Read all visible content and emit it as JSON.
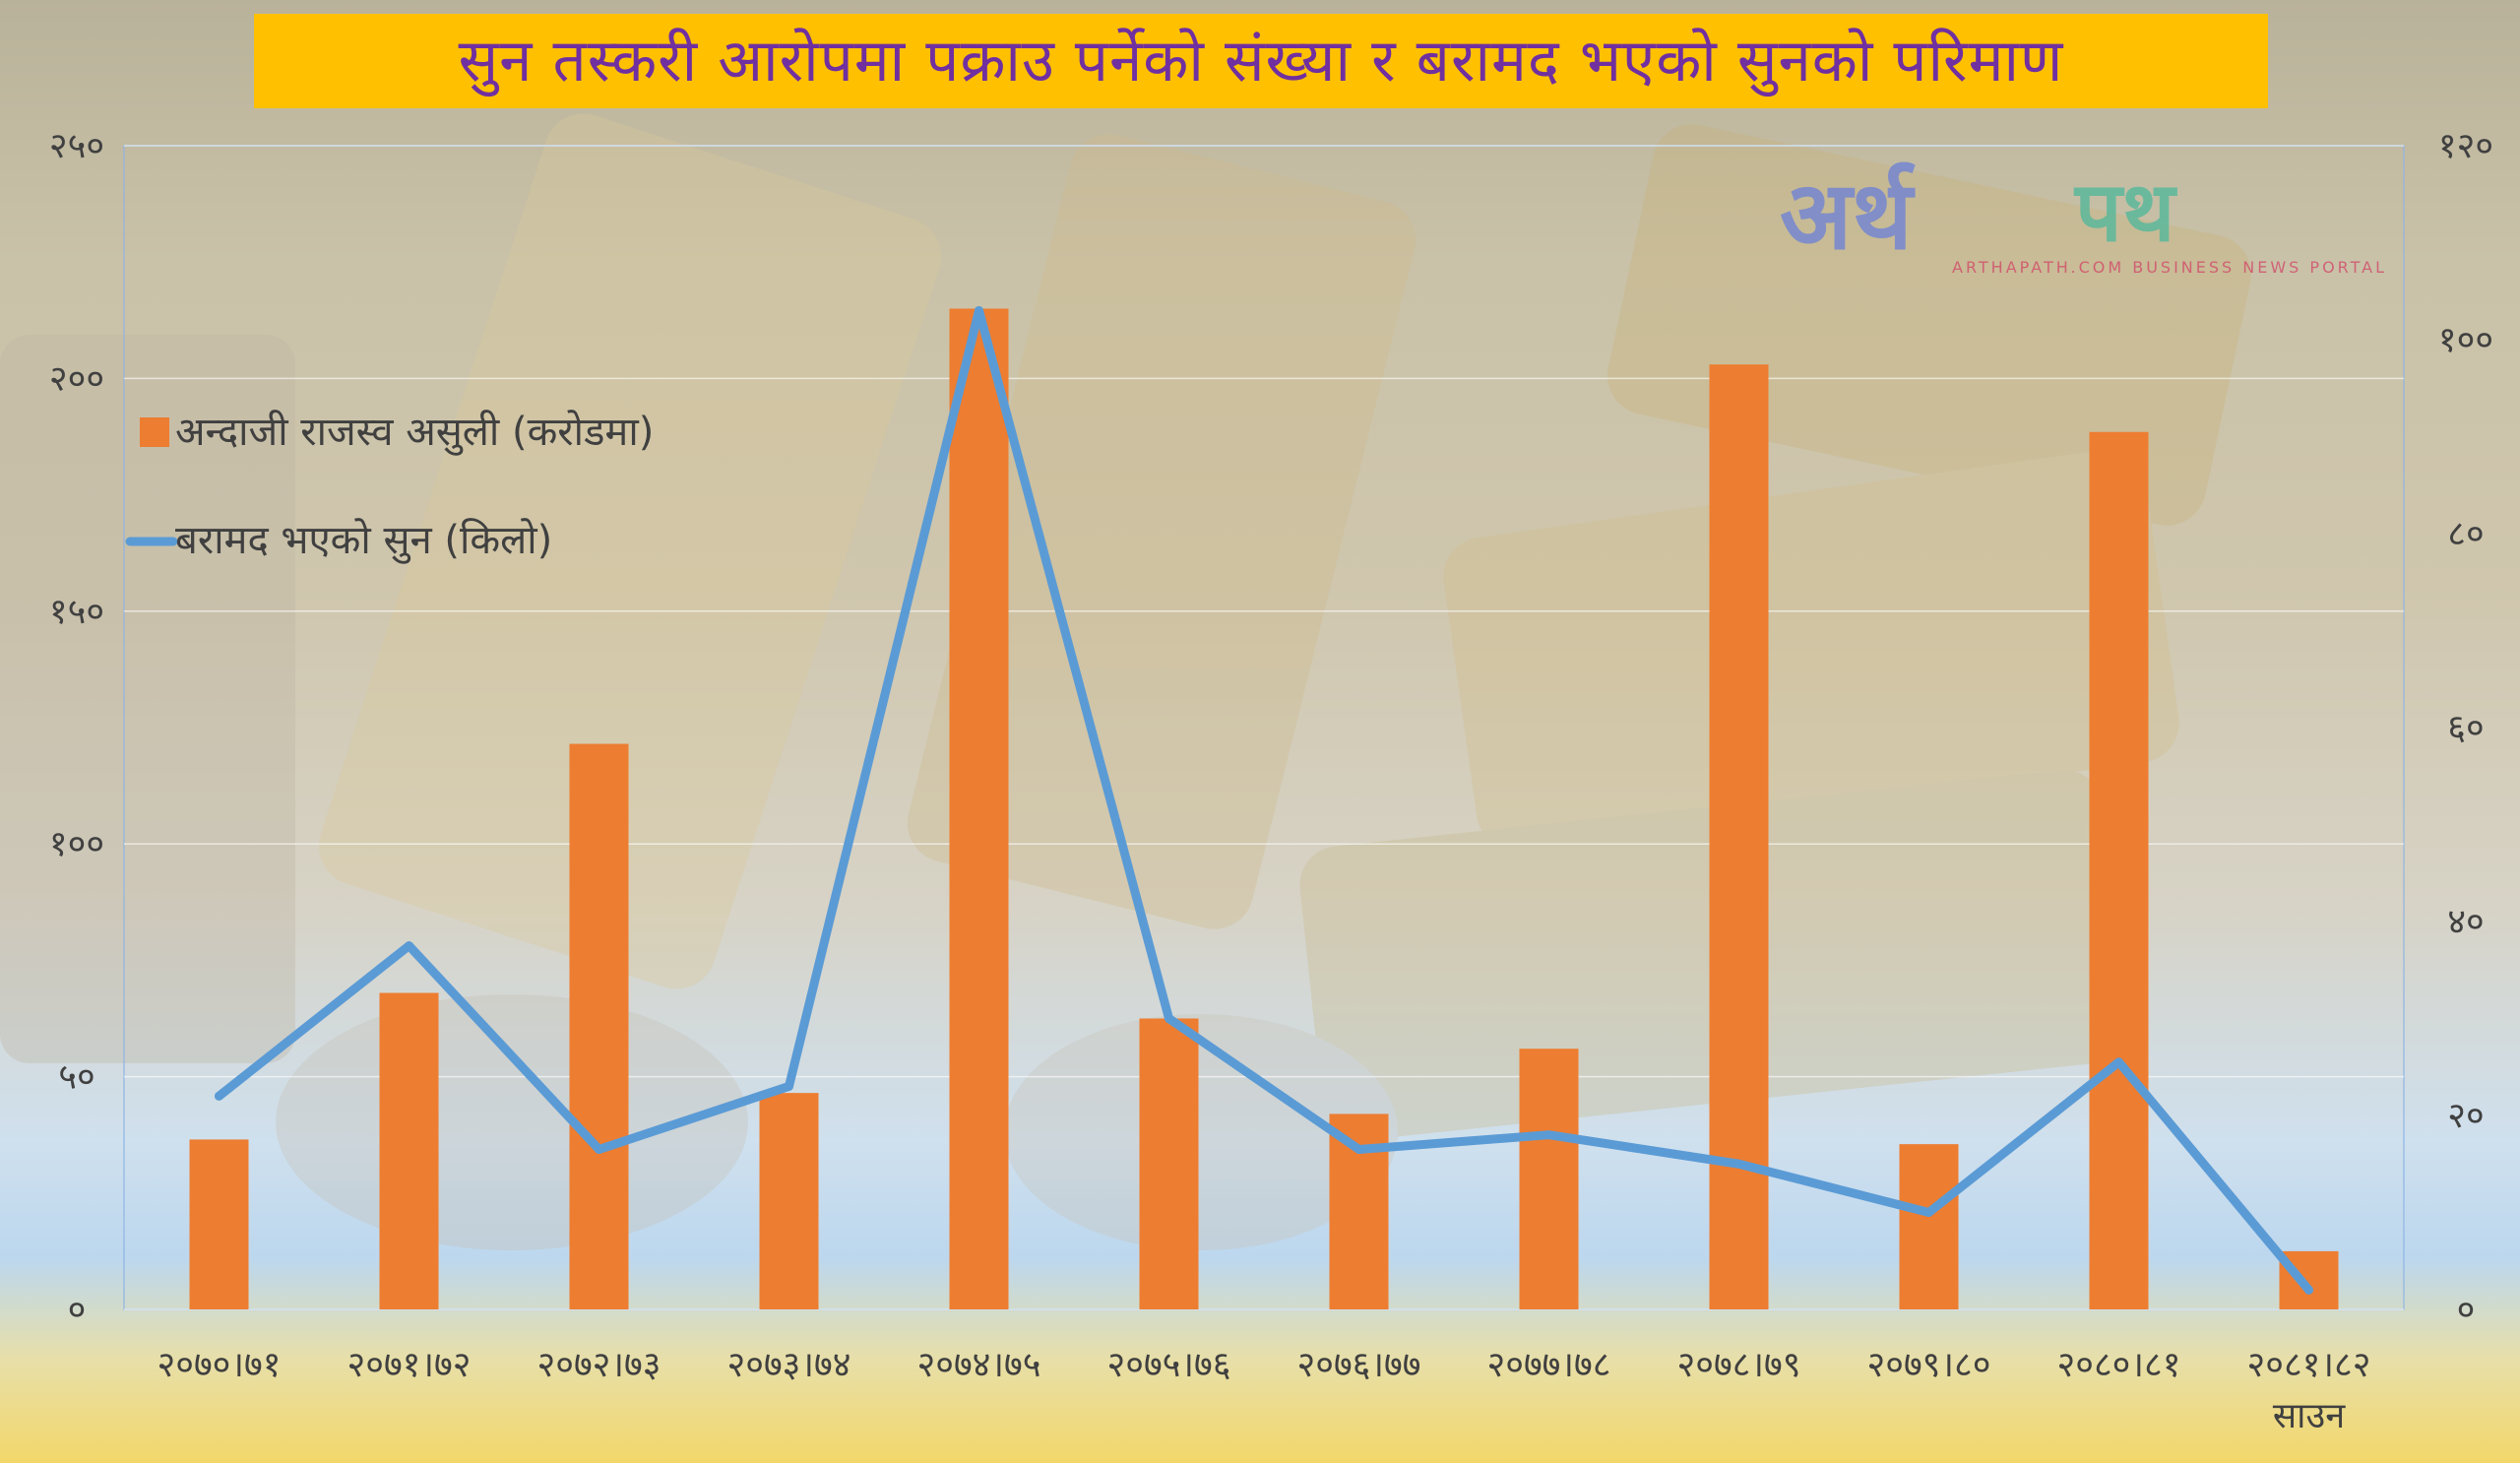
{
  "title": "सुन तस्करी आरोपमा पक्राउ पर्नेको संख्या र बरामद भएको सुनको परिमाण",
  "logo": {
    "main": "अर्थ",
    "second": "पथ",
    "tagline": "ARTHAPATH.COM   BUSINESS NEWS PORTAL"
  },
  "colors": {
    "bars": "#ed7d31",
    "line": "#5b9bd5",
    "title_bg": "#ffc000",
    "title_text": "#7030a0",
    "axis_text": "#404040"
  },
  "chart_data": {
    "type": "bar",
    "categories": [
      "२०७०।७१",
      "२०७१।७२",
      "२०७२।७३",
      "२०७३।७४",
      "२०७४।७५",
      "२०७५।७६",
      "२०७६।७७",
      "२०७७।७८",
      "२०७८।७९",
      "२०७९।८०",
      "२०८०।८१",
      "२०८१।८२"
    ],
    "category_sublabels": [
      "",
      "",
      "",
      "",
      "",
      "",
      "",
      "",
      "",
      "",
      "",
      "साउन"
    ],
    "series": [
      {
        "name": "अन्दाजी राजस्व असुली (करोडमा)",
        "type": "bar",
        "axis": "left",
        "values": [
          36.5,
          68,
          121.5,
          46.5,
          215,
          62.5,
          42,
          56,
          203,
          35.5,
          188.5,
          12.5
        ]
      },
      {
        "name": "बरामद भएको सुन (किलो)",
        "type": "line",
        "axis": "right",
        "values": [
          22,
          37.5,
          16.5,
          23,
          103,
          30,
          16.5,
          18,
          15,
          10,
          25.5,
          2
        ]
      }
    ],
    "y_left": {
      "range": [
        0,
        250
      ],
      "ticks": [
        0,
        50,
        100,
        150,
        200,
        250
      ],
      "tick_labels": [
        "०",
        "५०",
        "१००",
        "१५०",
        "२००",
        "२५०"
      ]
    },
    "y_right": {
      "range": [
        0,
        120
      ],
      "ticks": [
        0,
        20,
        40,
        60,
        80,
        100,
        120
      ],
      "tick_labels": [
        "०",
        "२०",
        "४०",
        "६०",
        "८०",
        "१००",
        "१२०"
      ]
    },
    "grid": true,
    "legend_position": "upper-left"
  }
}
